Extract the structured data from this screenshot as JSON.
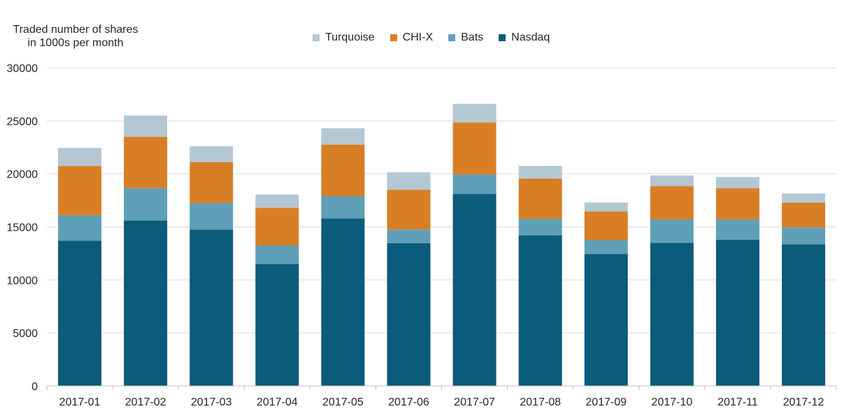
{
  "chart_data": {
    "type": "bar",
    "stacked": true,
    "ylabel_lines": [
      "Traded number of shares",
      "in 1000s per month"
    ],
    "categories": [
      "2017-01",
      "2017-02",
      "2017-03",
      "2017-04",
      "2017-05",
      "2017-06",
      "2017-07",
      "2017-08",
      "2017-09",
      "2017-10",
      "2017-11",
      "2017-12"
    ],
    "ylim": [
      0,
      30000
    ],
    "yticks": [
      0,
      5000,
      10000,
      15000,
      20000,
      25000,
      30000
    ],
    "grid": true,
    "legend_position": "top-center",
    "series": [
      {
        "name": "Nasdaq",
        "color": "#0b5b7a",
        "values": [
          13700,
          15600,
          14750,
          11500,
          15800,
          13450,
          18100,
          14200,
          12450,
          13500,
          13800,
          13350
        ]
      },
      {
        "name": "Bats",
        "color": "#5f9fb7",
        "values": [
          2400,
          3050,
          2500,
          1750,
          2100,
          1300,
          1850,
          1550,
          1300,
          2200,
          1900,
          1600
        ]
      },
      {
        "name": "CHI-X",
        "color": "#d87f26",
        "values": [
          4650,
          4850,
          3850,
          3550,
          4850,
          3750,
          4900,
          3800,
          2700,
          3150,
          2950,
          2350
        ]
      },
      {
        "name": "Turquoise",
        "color": "#b4c8d3",
        "values": [
          1700,
          2000,
          1500,
          1250,
          1550,
          1650,
          1750,
          1200,
          850,
          1000,
          1050,
          850
        ]
      }
    ]
  }
}
